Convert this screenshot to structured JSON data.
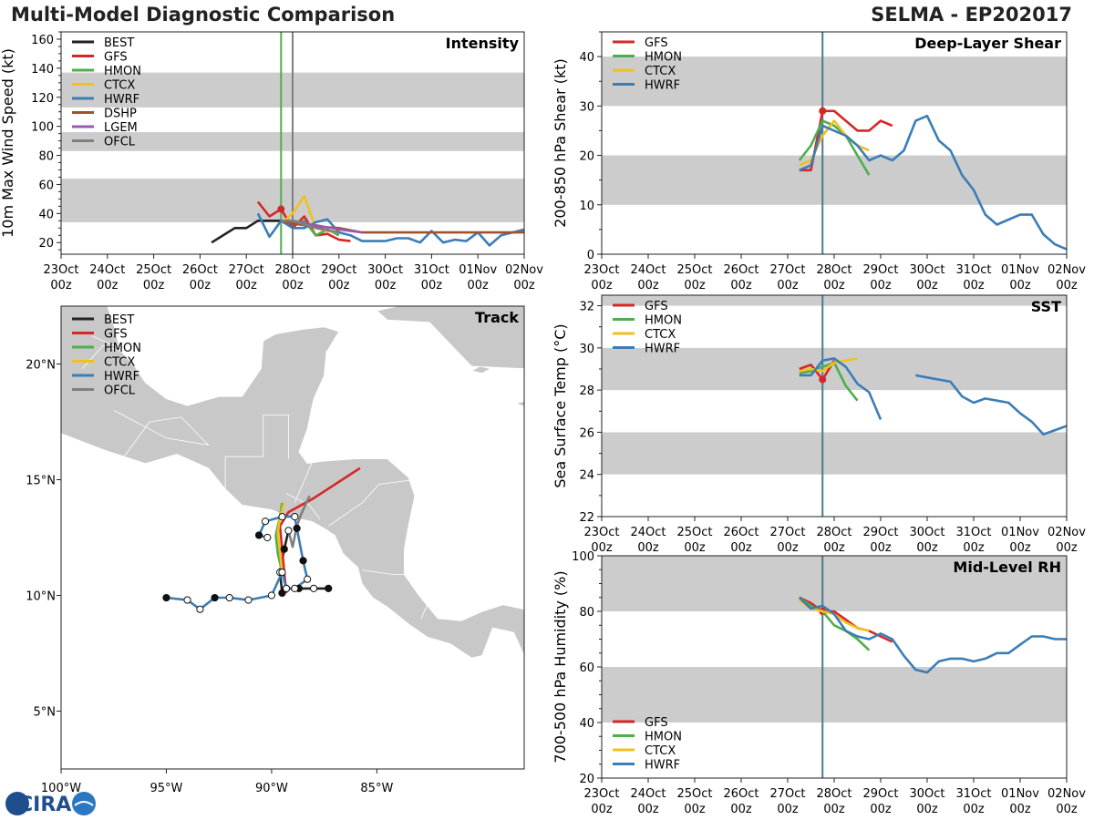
{
  "header": {
    "main_title": "Multi-Model Diagnostic Comparison",
    "storm_title": "SELMA - EP202017",
    "logo_label": "CIRA"
  },
  "colors": {
    "BEST": "#222222",
    "GFS": "#d62728",
    "HMON": "#4daf4a",
    "CTCX": "#f2c01e",
    "HWRF": "#3b7db7",
    "DSHP": "#a0522d",
    "LGEM": "#9b59b6",
    "OFCL": "#7f7f7f",
    "band": "#cccccc",
    "land": "#c8c8c8",
    "marker_line": "#4a7a8c"
  },
  "time_axis": {
    "ticks": [
      "23Oct 00z",
      "24Oct 00z",
      "25Oct 00z",
      "26Oct 00z",
      "27Oct 00z",
      "28Oct 00z",
      "29Oct 00z",
      "30Oct 00z",
      "31Oct 00z",
      "01Nov 00z",
      "02Nov 00z"
    ],
    "tick_dates": [
      "23Oct",
      "24Oct",
      "25Oct",
      "26Oct",
      "27Oct",
      "28Oct",
      "29Oct",
      "30Oct",
      "31Oct",
      "01Nov",
      "02Nov"
    ],
    "tick_hours": [
      "00z",
      "00z",
      "00z",
      "00z",
      "00z",
      "00z",
      "00z",
      "00z",
      "00z",
      "00z",
      "00z"
    ],
    "range_days": [
      0,
      10
    ]
  },
  "chart_data": [
    {
      "id": "intensity",
      "type": "line",
      "title": "Intensity",
      "ylabel": "10m Max Wind Speed (kt)",
      "ylim": [
        12,
        165
      ],
      "yticks": [
        20,
        40,
        60,
        80,
        100,
        120,
        140,
        160
      ],
      "bands": [
        [
          34,
          64
        ],
        [
          83,
          96
        ],
        [
          113,
          137
        ]
      ],
      "vlines": [
        {
          "x": 4.75,
          "color": "#4daf4a"
        },
        {
          "x": 5.0,
          "color": "#7f7f7f"
        }
      ],
      "legend": [
        "BEST",
        "GFS",
        "HMON",
        "CTCX",
        "HWRF",
        "DSHP",
        "LGEM",
        "OFCL"
      ],
      "series": [
        {
          "name": "BEST",
          "x": [
            3.25,
            3.75,
            4.0,
            4.25,
            4.5,
            4.75
          ],
          "y": [
            20,
            30,
            30,
            35,
            35,
            35
          ]
        },
        {
          "name": "GFS",
          "x": [
            4.25,
            4.5,
            4.75,
            5.0,
            5.25,
            5.5,
            5.75,
            6.0,
            6.25
          ],
          "y": [
            48,
            38,
            43,
            30,
            38,
            25,
            26,
            22,
            21
          ],
          "dot": [
            4.75,
            43
          ]
        },
        {
          "name": "HMON",
          "x": [
            4.75,
            5.0,
            5.25,
            5.5,
            5.75,
            6.0
          ],
          "y": [
            35,
            33,
            35,
            25,
            29,
            25
          ]
        },
        {
          "name": "CTCX",
          "x": [
            4.75,
            5.0,
            5.25,
            5.5,
            5.75,
            6.0
          ],
          "y": [
            33,
            40,
            52,
            30,
            28,
            27
          ]
        },
        {
          "name": "HWRF",
          "x": [
            4.25,
            4.5,
            4.75,
            5.0,
            5.25,
            5.5,
            5.75,
            6.0,
            6.25,
            6.5,
            6.75,
            7.0,
            7.25,
            7.5,
            7.75,
            8.0,
            8.25,
            8.5,
            8.75,
            9.0,
            9.25,
            9.5,
            9.75,
            10.0
          ],
          "y": [
            40,
            24,
            35,
            30,
            30,
            34,
            36,
            27,
            25,
            21,
            21,
            21,
            23,
            23,
            20,
            28,
            20,
            22,
            21,
            27,
            18,
            25,
            27,
            29
          ]
        },
        {
          "name": "DSHP",
          "x": [
            4.75,
            5.0,
            5.5,
            6.0,
            6.5,
            7.0,
            8.0,
            9.0,
            10.0
          ],
          "y": [
            35,
            33,
            31,
            30,
            27,
            27,
            27,
            27,
            27
          ]
        },
        {
          "name": "LGEM",
          "x": [
            4.75,
            5.0,
            5.5,
            6.0,
            6.5
          ],
          "y": [
            35,
            35,
            32,
            29,
            27
          ]
        },
        {
          "name": "OFCL",
          "x": [
            4.75,
            5.0,
            5.5,
            6.0
          ],
          "y": [
            35,
            35,
            30,
            27
          ]
        }
      ]
    },
    {
      "id": "shear",
      "type": "line",
      "title": "Deep-Layer Shear",
      "ylabel": "200-850 hPa Shear (kt)",
      "ylim": [
        0,
        45
      ],
      "yticks": [
        0,
        10,
        20,
        30,
        40
      ],
      "bands": [
        [
          10,
          20
        ],
        [
          30,
          40
        ]
      ],
      "vlines": [
        {
          "x": 4.75,
          "color": "#4a7a8c"
        }
      ],
      "legend": [
        "GFS",
        "HMON",
        "CTCX",
        "HWRF"
      ],
      "series": [
        {
          "name": "GFS",
          "x": [
            4.25,
            4.5,
            4.75,
            5.0,
            5.25,
            5.5,
            5.75,
            6.0,
            6.25
          ],
          "y": [
            17,
            17,
            29,
            29,
            27,
            25,
            25,
            27,
            26
          ],
          "dot": [
            4.75,
            29
          ]
        },
        {
          "name": "HMON",
          "x": [
            4.25,
            4.5,
            4.75,
            5.0,
            5.25,
            5.5,
            5.75
          ],
          "y": [
            19,
            22,
            27,
            26,
            24,
            20,
            16
          ]
        },
        {
          "name": "CTCX",
          "x": [
            4.25,
            4.5,
            4.75,
            5.0,
            5.25,
            5.5,
            5.75
          ],
          "y": [
            18,
            19,
            24,
            27,
            24,
            22,
            21
          ]
        },
        {
          "name": "HWRF",
          "x": [
            4.25,
            4.5,
            4.75,
            5.0,
            5.25,
            5.5,
            5.75,
            6.0,
            6.25,
            6.5,
            6.75,
            7.0,
            7.25,
            7.5,
            7.75,
            8.0,
            8.25,
            8.5,
            8.75,
            9.0,
            9.25,
            9.5,
            9.75,
            10.0
          ],
          "y": [
            17,
            18,
            26,
            25,
            24,
            22,
            19,
            20,
            19,
            21,
            27,
            28,
            23,
            21,
            16,
            13,
            8,
            6,
            7,
            8,
            8,
            4,
            2,
            1
          ]
        }
      ]
    },
    {
      "id": "sst",
      "type": "line",
      "title": "SST",
      "ylabel": "Sea Surface Temp (°C)",
      "ylim": [
        22,
        32.5
      ],
      "yticks": [
        22,
        24,
        26,
        28,
        30,
        32
      ],
      "bands": [
        [
          24,
          26
        ],
        [
          28,
          30
        ],
        [
          32,
          32.5
        ]
      ],
      "vlines": [
        {
          "x": 4.75,
          "color": "#4a7a8c"
        }
      ],
      "legend": [
        "GFS",
        "HMON",
        "CTCX",
        "HWRF"
      ],
      "series": [
        {
          "name": "GFS",
          "x": [
            4.25,
            4.5,
            4.75,
            5.0
          ],
          "y": [
            29.0,
            29.2,
            28.5,
            29.4
          ],
          "dot": [
            4.75,
            28.5
          ]
        },
        {
          "name": "HMON",
          "x": [
            4.25,
            4.5,
            4.75,
            5.0,
            5.25,
            5.5
          ],
          "y": [
            28.8,
            28.9,
            29.1,
            29.3,
            28.2,
            27.5
          ]
        },
        {
          "name": "CTCX",
          "x": [
            4.25,
            4.5,
            4.75,
            5.0,
            5.25,
            5.5
          ],
          "y": [
            28.9,
            29.0,
            28.9,
            29.3,
            29.4,
            29.5
          ]
        },
        {
          "name": "HWRF",
          "x": [
            4.25,
            4.5,
            4.75,
            5.0,
            5.25,
            5.5,
            5.75,
            6.0,
            null,
            6.75,
            7.0,
            7.25,
            7.5,
            7.75,
            8.0,
            8.25,
            8.5,
            8.75,
            9.0,
            9.25,
            9.5,
            9.75,
            10.0
          ],
          "y": [
            28.7,
            28.7,
            29.4,
            29.5,
            29.1,
            28.3,
            27.9,
            26.6,
            null,
            28.7,
            28.6,
            28.5,
            28.4,
            27.7,
            27.4,
            27.6,
            27.5,
            27.4,
            26.9,
            26.5,
            25.9,
            26.1,
            26.3
          ]
        }
      ]
    },
    {
      "id": "rh",
      "type": "line",
      "title": "Mid-Level RH",
      "ylabel": "700-500 hPa Humidity (%)",
      "ylim": [
        20,
        100
      ],
      "yticks": [
        20,
        40,
        60,
        80,
        100
      ],
      "bands": [
        [
          40,
          60
        ],
        [
          80,
          100
        ]
      ],
      "vlines": [
        {
          "x": 4.75,
          "color": "#4a7a8c"
        }
      ],
      "legend": [
        "GFS",
        "HMON",
        "CTCX",
        "HWRF"
      ],
      "series": [
        {
          "name": "GFS",
          "x": [
            4.25,
            4.5,
            4.75,
            5.0,
            5.25,
            5.5,
            5.75,
            6.0,
            6.25
          ],
          "y": [
            85,
            83,
            80,
            80,
            77,
            74,
            73,
            71,
            69
          ],
          "dot": [
            4.75,
            80
          ]
        },
        {
          "name": "HMON",
          "x": [
            4.25,
            4.5,
            4.75,
            5.0,
            5.25,
            5.5,
            5.75
          ],
          "y": [
            85,
            82,
            80,
            75,
            73,
            70,
            66
          ]
        },
        {
          "name": "CTCX",
          "x": [
            4.25,
            4.5,
            4.75,
            5.0,
            5.25,
            5.5,
            5.75
          ],
          "y": [
            84,
            81,
            80,
            79,
            76,
            74,
            73
          ]
        },
        {
          "name": "HWRF",
          "x": [
            4.25,
            4.5,
            4.75,
            5.0,
            5.25,
            5.5,
            5.75,
            6.0,
            6.25,
            6.5,
            6.75,
            7.0,
            7.25,
            7.5,
            7.75,
            8.0,
            8.25,
            8.5,
            8.75,
            9.0,
            9.25,
            9.5,
            9.75,
            10.0
          ],
          "y": [
            85,
            81,
            82,
            79,
            73,
            71,
            70,
            72,
            70,
            64,
            59,
            58,
            62,
            63,
            63,
            62,
            63,
            65,
            65,
            68,
            71,
            71,
            70,
            70
          ]
        }
      ]
    },
    {
      "id": "track",
      "type": "scatter",
      "title": "Track",
      "xlabel_ticks": [
        "100°W",
        "95°W",
        "90°W",
        "85°W"
      ],
      "x_tick_values": [
        -100,
        -95,
        -90,
        -85
      ],
      "ylabel_ticks": [
        "5°N",
        "10°N",
        "15°N",
        "20°N"
      ],
      "y_tick_values": [
        5,
        10,
        15,
        20
      ],
      "xlim": [
        -100,
        -78
      ],
      "ylim": [
        2.5,
        22.5
      ],
      "legend": [
        "BEST",
        "GFS",
        "HMON",
        "CTCX",
        "HWRF",
        "OFCL"
      ],
      "series": [
        {
          "name": "BEST",
          "lon": [
            -87.3,
            -88.0,
            -88.7,
            -89.3,
            -89.5,
            -89.6,
            -89.4,
            -89.2
          ],
          "lat": [
            10.3,
            10.3,
            10.3,
            10.3,
            10.1,
            11.0,
            12.0,
            12.8
          ],
          "filled": [
            1,
            0,
            1,
            0,
            1,
            0,
            1,
            0
          ]
        },
        {
          "name": "GFS",
          "lon": [
            -89.3,
            -89.4,
            -89.5,
            -89.6,
            -89.2,
            -88.0,
            -85.8
          ],
          "lat": [
            10.1,
            11.0,
            12.0,
            13.0,
            13.6,
            14.2,
            15.5
          ]
        },
        {
          "name": "HMON",
          "lon": [
            -89.5,
            -89.7,
            -89.8,
            -89.6,
            -89.5
          ],
          "lat": [
            11.0,
            11.8,
            12.6,
            13.4,
            14.0
          ]
        },
        {
          "name": "CTCX",
          "lon": [
            -89.5,
            -89.6,
            -89.7,
            -89.6,
            -89.4
          ],
          "lat": [
            11.0,
            11.9,
            12.7,
            13.4,
            14.0
          ]
        },
        {
          "name": "HWRF",
          "lon": [
            -95.0,
            -94.0,
            -93.4,
            -92.7,
            -92.0,
            -91.1,
            -90.0,
            -89.5,
            -89.3,
            -88.9,
            -88.3,
            -88.5,
            -88.8,
            -88.9,
            -89.5,
            -90.3,
            -90.6,
            -90.2
          ],
          "lat": [
            9.9,
            9.8,
            9.4,
            9.9,
            9.9,
            9.8,
            10.0,
            11.0,
            10.3,
            10.3,
            10.7,
            11.5,
            12.9,
            13.4,
            13.4,
            13.2,
            12.6,
            12.5
          ],
          "filled": [
            1,
            0,
            0,
            1,
            0,
            0,
            0,
            0,
            0,
            0,
            0,
            1,
            1,
            0,
            0,
            0,
            1,
            0
          ]
        },
        {
          "name": "OFCL",
          "lon": [
            -89.2,
            -89.0,
            -88.8,
            -88.6,
            -88.2
          ],
          "lat": [
            12.8,
            12.1,
            13.0,
            13.5,
            14.3
          ]
        }
      ]
    }
  ]
}
